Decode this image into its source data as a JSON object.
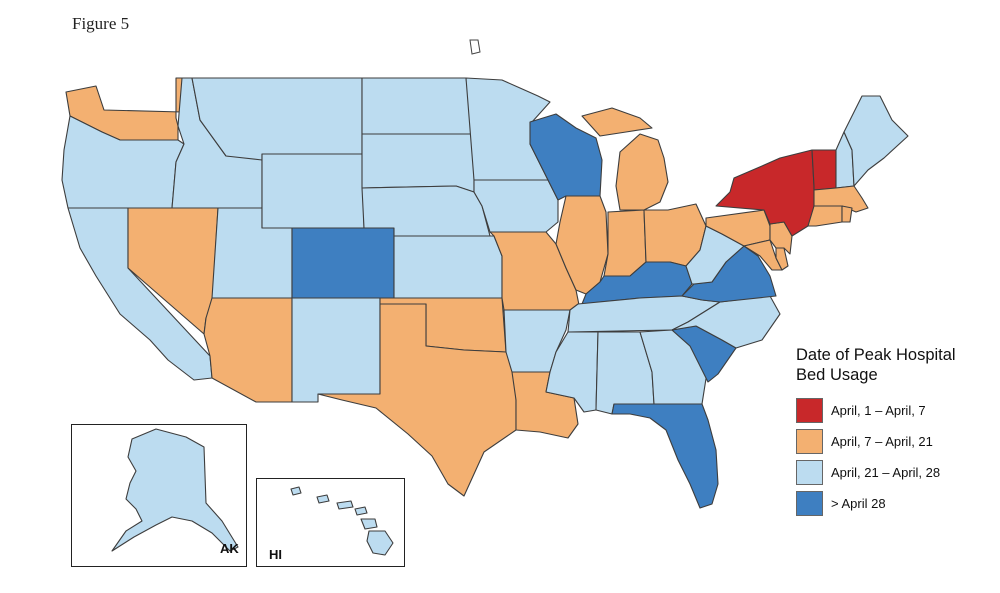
{
  "figure_label": "Figure 5",
  "legend": {
    "title_line1": "Date of Peak Hospital",
    "title_line2": "Bed Usage",
    "items": [
      {
        "key": "c1",
        "label": "April, 1 – April, 7",
        "color": "#c8282a"
      },
      {
        "key": "c2",
        "label": "April, 7 – April, 21",
        "color": "#f3b071"
      },
      {
        "key": "c3",
        "label": "April, 21 – April, 28",
        "color": "#bcdcf0"
      },
      {
        "key": "c4",
        "label": "> April 28",
        "color": "#3e7fc1"
      }
    ]
  },
  "insets": {
    "alaska_label": "AK",
    "hawaii_label": "HI"
  },
  "regions": {
    "WA": "c2",
    "OR": "c3",
    "CA": "c3",
    "ID": "c3",
    "NV": "c2",
    "UT": "c3",
    "AZ": "c2",
    "MT": "c3",
    "WY": "c3",
    "CO": "c4",
    "NM": "c3",
    "ND": "c3",
    "SD": "c3",
    "NE": "c3",
    "KS": "c3",
    "OK": "c2",
    "TX": "c2",
    "MN": "c3",
    "IA": "c3",
    "MO": "c2",
    "AR": "c3",
    "LA": "c2",
    "WI": "c4",
    "IL": "c2",
    "MI": "c2",
    "IN": "c2",
    "OH": "c2",
    "KY": "c4",
    "TN": "c3",
    "MS": "c3",
    "AL": "c3",
    "GA": "c3",
    "FL": "c4",
    "SC": "c4",
    "NC": "c3",
    "VA": "c4",
    "WV": "c3",
    "PA": "c2",
    "NY": "c1",
    "VT": "c1",
    "NH": "c3",
    "ME": "c3",
    "MA": "c2",
    "CT": "c2",
    "RI": "c2",
    "NJ": "c2",
    "DE": "c2",
    "MD": "c2",
    "AK": "c3",
    "HI": "c3"
  }
}
